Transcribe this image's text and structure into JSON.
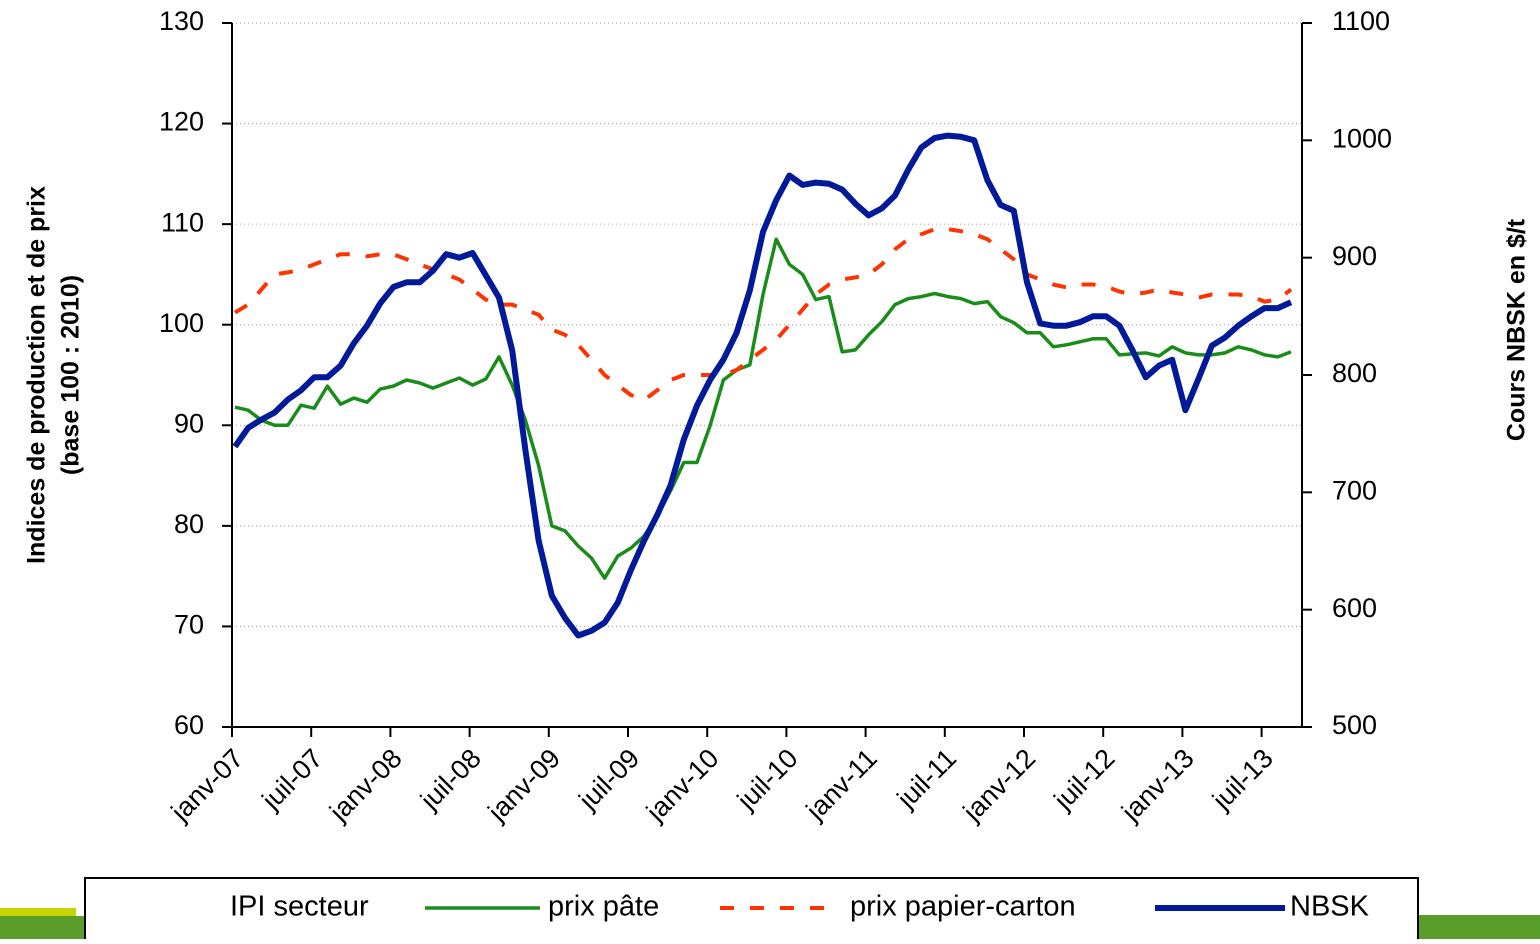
{
  "chart_data": {
    "type": "line",
    "axis_labels": {
      "y": [
        "Indices de production et de prix",
        "(base 100 : 2010)"
      ],
      "y2": "Cours NBSK en $/t"
    },
    "categories": [
      "janv-07",
      null,
      null,
      null,
      null,
      null,
      "juil-07",
      null,
      null,
      null,
      null,
      null,
      "janv-08",
      null,
      null,
      null,
      null,
      null,
      "juil-08",
      null,
      null,
      null,
      null,
      null,
      "janv-09",
      null,
      null,
      null,
      null,
      null,
      "juil-09",
      null,
      null,
      null,
      null,
      null,
      "janv-10",
      null,
      null,
      null,
      null,
      null,
      "juil-10",
      null,
      null,
      null,
      null,
      null,
      "janv-11",
      null,
      null,
      null,
      null,
      null,
      "juil-11",
      null,
      null,
      null,
      null,
      null,
      "janv-12",
      null,
      null,
      null,
      null,
      null,
      "juil-12",
      null,
      null,
      null,
      null,
      null,
      "janv-13",
      null,
      null,
      null,
      null,
      null,
      "juil-13",
      null,
      null
    ],
    "ylim": [
      60,
      130
    ],
    "yticks": [
      60,
      70,
      80,
      90,
      100,
      110,
      120,
      130
    ],
    "y2lim": [
      500,
      1100
    ],
    "y2ticks": [
      500,
      600,
      700,
      800,
      900,
      1000,
      1100
    ],
    "grid": true,
    "series": [
      {
        "name": "IPI secteur",
        "color": "#ffffff",
        "values": [
          null,
          null,
          null,
          null,
          null,
          null,
          null,
          null,
          null,
          null,
          null,
          null,
          null,
          null,
          null,
          null,
          null,
          null,
          null,
          null,
          null,
          null,
          null,
          null,
          null,
          null,
          null,
          null,
          null,
          null,
          null,
          null,
          null,
          null,
          null,
          null,
          null,
          null,
          null,
          null,
          null,
          null,
          null,
          null,
          null,
          null,
          null,
          null,
          null,
          null,
          null,
          null,
          null,
          null,
          null,
          null,
          null,
          null,
          null,
          null,
          null,
          null,
          null,
          null,
          null,
          null,
          null,
          null,
          null,
          null,
          null,
          null,
          null,
          null,
          null,
          null,
          null,
          null,
          null,
          null,
          null
        ]
      },
      {
        "name": "prix pâte",
        "color": "#1a8c1a",
        "values": [
          91.8,
          91.5,
          90.5,
          90.0,
          90.0,
          92.0,
          91.7,
          93.9,
          92.1,
          92.7,
          92.3,
          93.6,
          93.9,
          94.5,
          94.2,
          93.7,
          94.2,
          94.7,
          94.0,
          94.6,
          96.8,
          94.0,
          90.5,
          86.0,
          80.0,
          79.5,
          78.0,
          76.8,
          74.8,
          77.0,
          77.8,
          79.0,
          81.0,
          83.5,
          86.3,
          86.3,
          90.0,
          94.5,
          95.5,
          96.0,
          103.0,
          108.5,
          106.0,
          105.0,
          102.5,
          102.8,
          97.3,
          97.5,
          99.0,
          100.3,
          102.0,
          102.6,
          102.8,
          103.1,
          102.8,
          102.6,
          102.1,
          102.3,
          100.8,
          100.2,
          99.2,
          99.2,
          97.8,
          98.0,
          98.3,
          98.6,
          98.6,
          97.0,
          97.1,
          97.2,
          96.9,
          97.8,
          97.2,
          97.0,
          97.0,
          97.2,
          97.8,
          97.5,
          97.0,
          96.8,
          97.3
        ]
      },
      {
        "name": "prix papier-carton",
        "color": "#ff3300",
        "dashed": true,
        "values": [
          101.2,
          102.0,
          103.5,
          105.0,
          105.2,
          105.5,
          106.0,
          106.5,
          107.0,
          107.0,
          106.8,
          107.0,
          107.0,
          106.5,
          106.0,
          105.5,
          105.0,
          104.5,
          103.5,
          102.5,
          102.0,
          102.0,
          101.5,
          101.0,
          99.5,
          99.0,
          98.0,
          96.5,
          95.0,
          94.0,
          93.0,
          92.5,
          93.5,
          94.5,
          95.0,
          95.0,
          95.0,
          95.0,
          95.5,
          96.5,
          97.5,
          98.5,
          100.0,
          101.5,
          103.0,
          104.0,
          104.5,
          104.7,
          105.0,
          106.0,
          107.5,
          108.5,
          109.0,
          109.5,
          109.5,
          109.3,
          109.0,
          108.5,
          107.5,
          106.5,
          105.0,
          104.5,
          104.0,
          103.7,
          104.0,
          104.0,
          103.8,
          103.3,
          103.0,
          103.2,
          103.5,
          103.2,
          103.0,
          102.7,
          103.0,
          103.0,
          103.0,
          102.8,
          102.3,
          102.5,
          103.5
        ]
      },
      {
        "name": "NBSK",
        "color": "#001a99",
        "axis": "y2",
        "values": [
          739,
          755,
          762,
          768,
          779,
          787,
          798,
          798,
          808,
          827,
          842,
          861,
          875,
          879,
          879,
          889,
          903,
          900,
          904,
          885,
          866,
          821,
          736,
          659,
          612,
          593,
          578,
          582,
          589,
          606,
          634,
          659,
          681,
          706,
          745,
          774,
          796,
          813,
          836,
          872,
          922,
          949,
          970,
          962,
          964,
          963,
          958,
          946,
          936,
          942,
          953,
          975,
          994,
          1002,
          1004,
          1003,
          1000,
          966,
          945,
          940,
          879,
          844,
          842,
          842,
          845,
          850,
          850,
          842,
          821,
          798,
          808,
          813,
          770,
          797,
          825,
          832,
          842,
          850,
          857,
          857,
          862
        ]
      }
    ]
  }
}
